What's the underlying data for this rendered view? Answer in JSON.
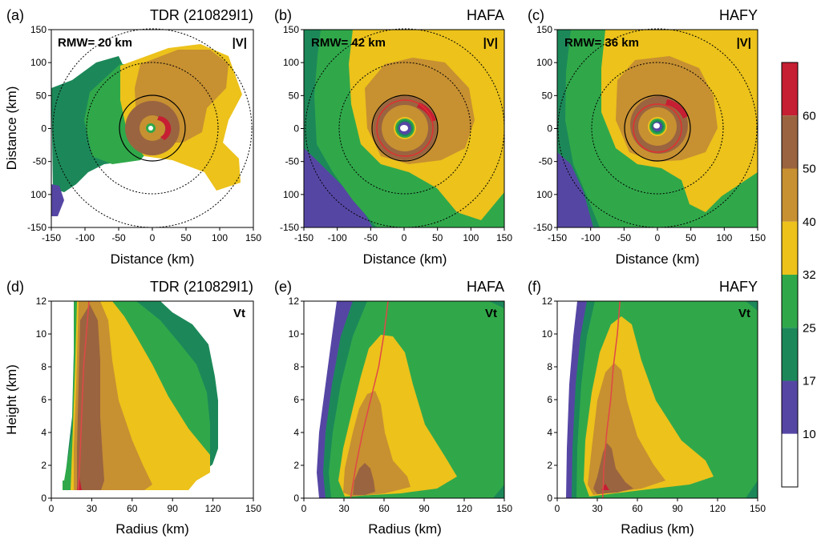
{
  "colors": {
    "bands": [
      "#ffffff",
      "#5646a4",
      "#1c8859",
      "#30a84a",
      "#ecc21b",
      "#c79031",
      "#9a6440",
      "#c61e33"
    ]
  },
  "colorbar": {
    "ticks": [
      "10",
      "17",
      "25",
      "32",
      "40",
      "50",
      "60"
    ]
  },
  "chart_data": [
    {
      "type": "heatmap",
      "panel": "(a)",
      "title": "TDR (210829I1)",
      "field_label": "|V|",
      "rmw_label": "RMW= 20 km",
      "rmw_km": 20,
      "xlabel": "Distance (km)",
      "ylabel": "Distance (km)",
      "xlim": [
        -150,
        150
      ],
      "ylim": [
        -150,
        150
      ],
      "xticks": [
        "-150",
        "-100",
        "-50",
        "0",
        "50",
        "100",
        "150"
      ],
      "yticks": [
        "150",
        "100",
        "50",
        "0",
        "-50",
        "100",
        "-150"
      ]
    },
    {
      "type": "heatmap",
      "panel": "(b)",
      "title": "HAFA",
      "field_label": "|V|",
      "rmw_label": "RMW= 42 km",
      "rmw_km": 42,
      "xlabel": "Distance (km)",
      "ylabel": "",
      "xlim": [
        -150,
        150
      ],
      "ylim": [
        -150,
        150
      ],
      "xticks": [
        "-150",
        "-100",
        "-50",
        "0",
        "50",
        "100",
        "150"
      ],
      "yticks": [
        "150",
        "100",
        "50",
        "0",
        "-50",
        "100",
        "-150"
      ]
    },
    {
      "type": "heatmap",
      "panel": "(c)",
      "title": "HAFY",
      "field_label": "|V|",
      "rmw_label": "RMW= 36 km",
      "rmw_km": 36,
      "xlabel": "Distance (km)",
      "ylabel": "",
      "xlim": [
        -150,
        150
      ],
      "ylim": [
        -150,
        150
      ],
      "xticks": [
        "-150",
        "-100",
        "-50",
        "0",
        "50",
        "100",
        "150"
      ],
      "yticks": [
        "150",
        "100",
        "50",
        "0",
        "-50",
        "100",
        "-150"
      ]
    },
    {
      "type": "heatmap",
      "panel": "(d)",
      "title": "TDR (210829I1)",
      "field_label": "Vt",
      "xlabel": "Radius (km)",
      "ylabel": "Height (km)",
      "xlim": [
        0,
        150
      ],
      "ylim": [
        0,
        12
      ],
      "xticks": [
        "0",
        "30",
        "60",
        "90",
        "120",
        "150"
      ],
      "yticks": [
        "0",
        "2",
        "4",
        "6",
        "8",
        "10",
        "12"
      ],
      "rmw_profile": {
        "z": [
          0.5,
          2,
          4,
          6,
          8,
          10,
          12
        ],
        "r": [
          20,
          21,
          22,
          23,
          24,
          26,
          28
        ]
      }
    },
    {
      "type": "heatmap",
      "panel": "(e)",
      "title": "HAFA",
      "field_label": "Vt",
      "xlabel": "Radius (km)",
      "ylabel": "",
      "xlim": [
        0,
        150
      ],
      "ylim": [
        0,
        12
      ],
      "xticks": [
        "0",
        "30",
        "60",
        "90",
        "120",
        "150"
      ],
      "yticks": [
        "0",
        "2",
        "4",
        "6",
        "8",
        "10",
        "12"
      ],
      "rmw_profile": {
        "z": [
          0,
          2,
          4,
          6,
          8,
          10,
          12
        ],
        "r": [
          35,
          39,
          44,
          50,
          56,
          60,
          63
        ]
      }
    },
    {
      "type": "heatmap",
      "panel": "(f)",
      "title": "HAFY",
      "field_label": "Vt",
      "xlabel": "Radius (km)",
      "ylabel": "",
      "xlim": [
        0,
        150
      ],
      "ylim": [
        0,
        12
      ],
      "xticks": [
        "0",
        "30",
        "60",
        "90",
        "120",
        "150"
      ],
      "yticks": [
        "0",
        "2",
        "4",
        "6",
        "8",
        "10",
        "12"
      ],
      "rmw_profile": {
        "z": [
          0,
          2,
          4,
          6,
          8,
          10,
          12
        ],
        "r": [
          34,
          35,
          37,
          40,
          42,
          45,
          47
        ]
      }
    }
  ]
}
